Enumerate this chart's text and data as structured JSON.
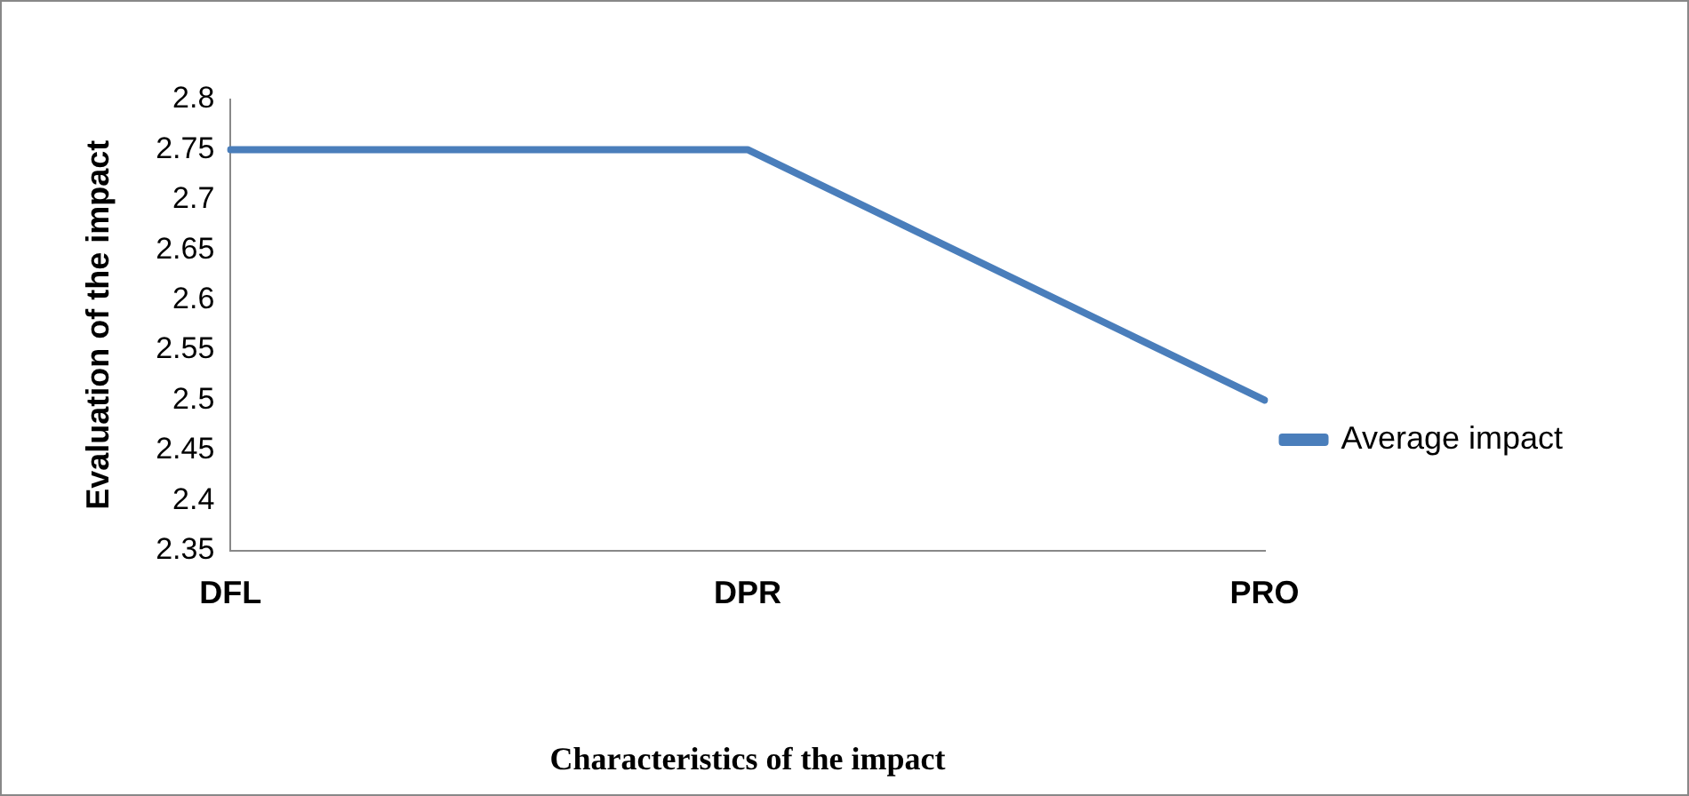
{
  "chart_data": {
    "type": "line",
    "xlabel": "Characteristics of the impact",
    "ylabel": "Evaluation of the impact",
    "categories": [
      "DFL",
      "DPR",
      "PRO"
    ],
    "series": [
      {
        "name": "Average impact",
        "color": "#4a7ebb",
        "values": [
          2.75,
          2.75,
          2.5
        ]
      }
    ],
    "ylim": [
      2.35,
      2.8
    ],
    "yticks": [
      2.35,
      2.4,
      2.45,
      2.5,
      2.55,
      2.6,
      2.65,
      2.7,
      2.75,
      2.8
    ],
    "grid": false,
    "legend": "right",
    "marker": "none",
    "line_style": "solid"
  }
}
